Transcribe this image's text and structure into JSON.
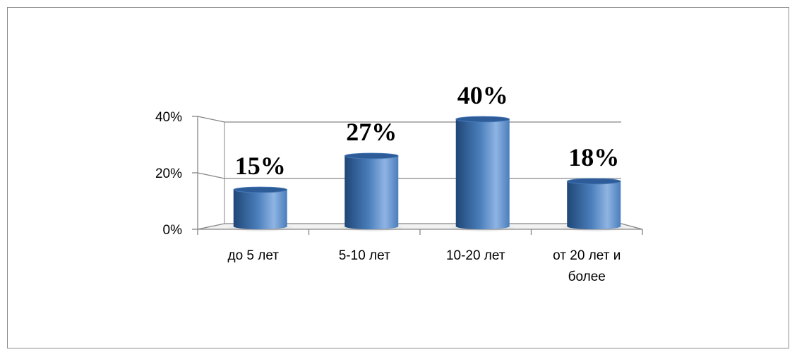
{
  "chart_data": {
    "type": "bar",
    "style": "3d-cylinder",
    "categories": [
      "до 5 лет",
      "5-10 лет",
      "10-20 лет",
      "от 20 лет и более"
    ],
    "category_lines": [
      [
        "до 5 лет"
      ],
      [
        "5-10 лет"
      ],
      [
        "10-20 лет"
      ],
      [
        "от 20 лет и",
        "более"
      ]
    ],
    "values": [
      15,
      27,
      40,
      18
    ],
    "data_labels": [
      "15%",
      "27%",
      "40%",
      "18%"
    ],
    "y_ticks": [
      {
        "value": 0,
        "label": "0%"
      },
      {
        "value": 20,
        "label": "20%"
      },
      {
        "value": 40,
        "label": "40%"
      }
    ],
    "ylim": [
      0,
      40
    ],
    "title": "",
    "xlabel": "",
    "ylabel": "",
    "grid": true,
    "legend": "none",
    "colors": {
      "bar_dark": "#1f4677",
      "bar_mid": "#4a7ebb",
      "bar_light": "#8fb4e3",
      "bar_top": "#2e5c99",
      "grid": "#868686",
      "frame": "#8c8c8c"
    }
  }
}
